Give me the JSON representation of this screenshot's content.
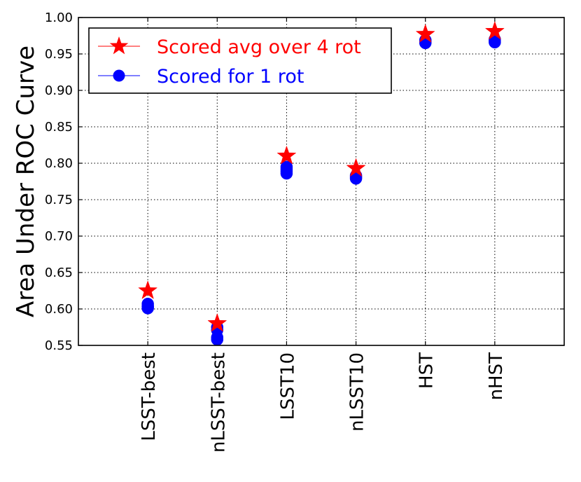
{
  "chart_data": {
    "type": "scatter",
    "title": "",
    "xlabel": "",
    "ylabel": "Area Under ROC Curve",
    "ylim": [
      0.55,
      1.0
    ],
    "yticks": [
      "0.55",
      "0.60",
      "0.65",
      "0.70",
      "0.75",
      "0.80",
      "0.85",
      "0.90",
      "0.95",
      "1.00"
    ],
    "categories": [
      "LSST-best",
      "nLSST-best",
      "LSST10",
      "nLSST10",
      "HST",
      "nHST"
    ],
    "grid": true,
    "legend_position": "top-left",
    "series": [
      {
        "name": "Scored avg over 4 rot",
        "marker": "star",
        "color": "#ff0000",
        "values": [
          0.625,
          0.58,
          0.81,
          0.793,
          0.977,
          0.981
        ]
      },
      {
        "name": "Scored for 1 rot",
        "marker": "circle",
        "color": "#0000ff",
        "points_per_category": [
          [
            0.601,
            0.604,
            0.607,
            0.603
          ],
          [
            0.558,
            0.561,
            0.571,
            0.575
          ],
          [
            0.786,
            0.789,
            0.792,
            0.795
          ],
          [
            0.779,
            0.781,
            0.783
          ],
          [
            0.965,
            0.967,
            0.969
          ],
          [
            0.966,
            0.968,
            0.97
          ]
        ]
      }
    ]
  }
}
